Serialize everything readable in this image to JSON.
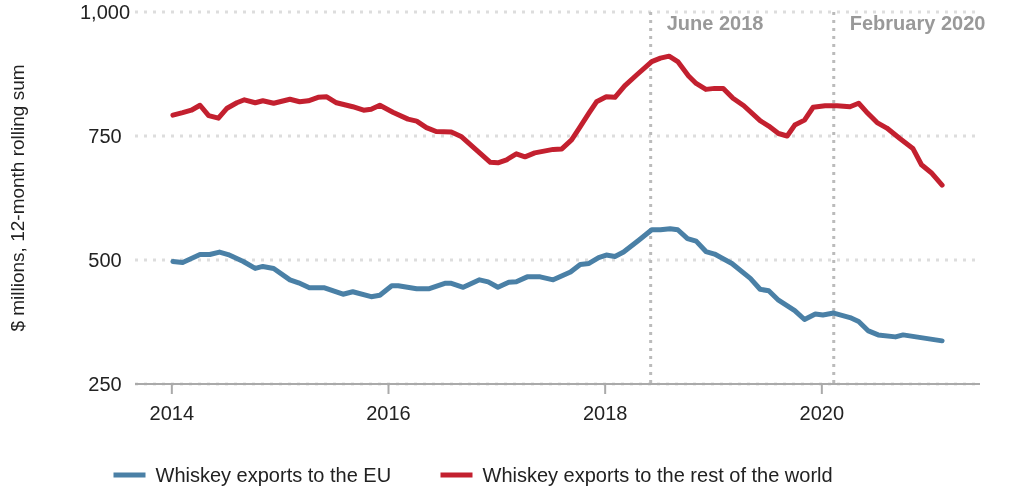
{
  "chart_data": {
    "type": "line",
    "ylabel": "$ millions, 12-month rolling sum",
    "xlim": [
      2013.66,
      2021.46
    ],
    "xticks": [
      2014,
      2016,
      2018,
      2020
    ],
    "ylim": [
      250,
      1000
    ],
    "yticks": [
      250,
      500,
      750,
      {
        "value": 1000,
        "label": "1,000"
      }
    ],
    "grid": "y",
    "legend": "bottom",
    "line_style": "solid",
    "marker": "none",
    "ref_lines": [
      {
        "axis": "x",
        "value": 2018.42,
        "label": "June 2018",
        "color": "#bbbbbb",
        "line_style": "dotted"
      },
      {
        "axis": "x",
        "value": 2020.11,
        "label": "February 2020",
        "color": "#bbbbbb",
        "line_style": "dotted"
      }
    ],
    "series": [
      {
        "name": "Whiskey exports to the EU",
        "color": "#4a80a6",
        "x": [
          2014.01,
          2014.1,
          2014.26,
          2014.35,
          2014.44,
          2014.52,
          2014.66,
          2014.77,
          2014.84,
          2014.94,
          2015.09,
          2015.17,
          2015.27,
          2015.41,
          2015.58,
          2015.67,
          2015.84,
          2015.92,
          2016.03,
          2016.09,
          2016.26,
          2016.37,
          2016.52,
          2016.58,
          2016.69,
          2016.84,
          2016.92,
          2017.01,
          2017.11,
          2017.18,
          2017.28,
          2017.4,
          2017.52,
          2017.68,
          2017.77,
          2017.85,
          2017.94,
          2018.01,
          2018.09,
          2018.17,
          2018.31,
          2018.43,
          2018.51,
          2018.6,
          2018.67,
          2018.76,
          2018.84,
          2018.93,
          2019.01,
          2019.17,
          2019.34,
          2019.43,
          2019.51,
          2019.6,
          2019.75,
          2019.84,
          2019.94,
          2020.01,
          2020.11,
          2020.26,
          2020.34,
          2020.43,
          2020.52,
          2020.68,
          2020.75,
          2021.11
        ],
        "values": [
          497,
          495,
          511,
          511,
          516,
          511,
          497,
          483,
          487,
          483,
          460,
          454,
          444,
          444,
          431,
          436,
          426,
          429,
          448,
          448,
          442,
          442,
          453,
          453,
          445,
          460,
          456,
          445,
          455,
          456,
          466,
          466,
          460,
          476,
          491,
          493,
          505,
          510,
          507,
          516,
          540,
          561,
          561,
          563,
          561,
          543,
          538,
          517,
          512,
          493,
          463,
          441,
          438,
          419,
          398,
          380,
          391,
          389,
          393,
          384,
          376,
          357,
          349,
          345,
          349,
          337
        ]
      },
      {
        "name": "Whiskey exports to the rest of the world",
        "color": "#c3202f",
        "x": [
          2014.01,
          2014.1,
          2014.18,
          2014.26,
          2014.34,
          2014.43,
          2014.51,
          2014.6,
          2014.67,
          2014.77,
          2014.84,
          2014.94,
          2015.09,
          2015.18,
          2015.26,
          2015.35,
          2015.43,
          2015.52,
          2015.67,
          2015.77,
          2015.84,
          2015.92,
          2016.04,
          2016.18,
          2016.26,
          2016.35,
          2016.44,
          2016.58,
          2016.67,
          2016.81,
          2016.94,
          2017.01,
          2017.09,
          2017.18,
          2017.26,
          2017.35,
          2017.52,
          2017.6,
          2017.69,
          2017.77,
          2017.85,
          2017.92,
          2018.01,
          2018.09,
          2018.18,
          2018.29,
          2018.43,
          2018.51,
          2018.59,
          2018.67,
          2018.77,
          2018.84,
          2018.93,
          2019.01,
          2019.09,
          2019.18,
          2019.28,
          2019.43,
          2019.51,
          2019.6,
          2019.68,
          2019.75,
          2019.84,
          2019.92,
          2020.03,
          2020.14,
          2020.26,
          2020.34,
          2020.41,
          2020.51,
          2020.6,
          2020.72,
          2020.84,
          2020.92,
          2021.01,
          2021.11
        ],
        "values": [
          792,
          797,
          802,
          812,
          791,
          786,
          806,
          817,
          823,
          817,
          821,
          816,
          824,
          819,
          821,
          828,
          829,
          817,
          809,
          802,
          804,
          812,
          798,
          784,
          780,
          767,
          759,
          758,
          749,
          722,
          697,
          696,
          702,
          714,
          708,
          716,
          723,
          724,
          742,
          769,
          796,
          819,
          829,
          828,
          851,
          873,
          900,
          907,
          911,
          900,
          871,
          856,
          844,
          846,
          846,
          826,
          811,
          781,
          770,
          755,
          750,
          772,
          782,
          808,
          811,
          811,
          809,
          816,
          799,
          777,
          766,
          745,
          725,
          692,
          676,
          651
        ]
      }
    ]
  }
}
